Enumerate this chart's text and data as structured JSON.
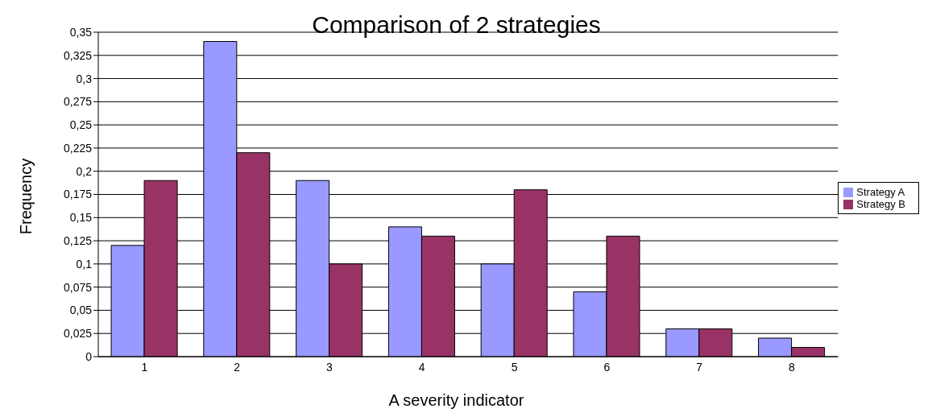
{
  "chart_data": {
    "type": "bar",
    "title": "Comparison of 2 strategies",
    "xlabel": "A severity indicator",
    "ylabel": "Frequency",
    "categories": [
      "1",
      "2",
      "3",
      "4",
      "5",
      "6",
      "7",
      "8"
    ],
    "series": [
      {
        "name": "Strategy A",
        "color": "#9999ff",
        "values": [
          0.12,
          0.34,
          0.19,
          0.14,
          0.1,
          0.07,
          0.03,
          0.02
        ]
      },
      {
        "name": "Strategy B",
        "color": "#993366",
        "values": [
          0.19,
          0.22,
          0.1,
          0.13,
          0.18,
          0.13,
          0.03,
          0.01
        ]
      }
    ],
    "ylim": [
      0,
      0.35
    ],
    "yticks": [
      0,
      {
        "value": 0.025,
        "label": "0,025"
      },
      {
        "value": 0.05,
        "label": "0,05"
      },
      {
        "value": 0.075,
        "label": "0,075"
      },
      {
        "value": 0.1,
        "label": "0,1"
      },
      {
        "value": 0.125,
        "label": "0,125"
      },
      {
        "value": 0.15,
        "label": "0,15"
      },
      {
        "value": 0.175,
        "label": "0,175"
      },
      {
        "value": 0.2,
        "label": "0,2"
      },
      {
        "value": 0.225,
        "label": "0,225"
      },
      {
        "value": 0.25,
        "label": "0,25"
      },
      {
        "value": 0.275,
        "label": "0,275"
      },
      {
        "value": 0.3,
        "label": "0,3"
      },
      {
        "value": 0.325,
        "label": "0,325"
      },
      {
        "value": 0.35,
        "label": "0,35"
      }
    ],
    "grid": "y",
    "legend": "right"
  }
}
